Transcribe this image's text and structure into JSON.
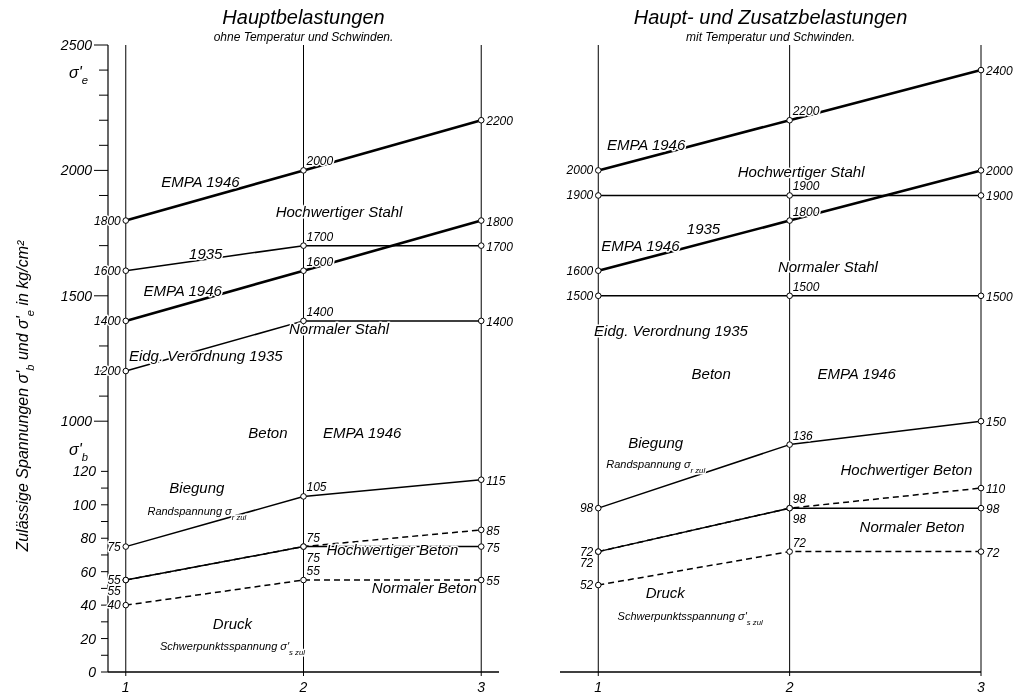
{
  "chart_data": [
    {
      "type": "line",
      "title": "Hauptbelastungen",
      "subtitle": "ohne Temperatur und Schwinden.",
      "y2label": "Zulässige Spannungen σ'$_{b}$ und σ'$_{e}$ in kg/cm²",
      "x": [
        1,
        2,
        3
      ],
      "xlim": [
        0.9,
        3.1
      ],
      "xticks": [
        1,
        2,
        3
      ],
      "ylim": [
        0,
        375
      ],
      "yticks": [
        0,
        {
          "value": 10,
          "label": null
        },
        20,
        {
          "value": 30,
          "label": null
        },
        40,
        {
          "value": 50,
          "label": null
        },
        60,
        {
          "value": 70,
          "label": null
        },
        80,
        {
          "value": 90,
          "label": null
        },
        100,
        {
          "value": 110,
          "label": null
        },
        120
      ],
      "y2lim": [
        0,
        2500
      ],
      "y2ticks": [
        1000,
        {
          "value": 1100,
          "label": null
        },
        {
          "value": 1200,
          "label": null
        },
        {
          "value": 1300,
          "label": null
        },
        {
          "value": 1400,
          "label": null
        },
        1500,
        {
          "value": 1600,
          "label": null
        },
        {
          "value": 1700,
          "label": null
        },
        {
          "value": 1800,
          "label": null
        },
        {
          "value": 1900,
          "label": null
        },
        2000,
        {
          "value": 2100,
          "label": null
        },
        {
          "value": 2200,
          "label": null
        },
        {
          "value": 2300,
          "label": null
        },
        {
          "value": 2400,
          "label": null
        },
        2500
      ],
      "series": [
        {
          "color": "#000000",
          "axis": "y2",
          "line_style": "solid",
          "values": [
            1800,
            2000,
            2200
          ]
        },
        {
          "color": "#000000",
          "axis": "y2",
          "line_style": "solid",
          "values": [
            1600,
            1700,
            1700
          ]
        },
        {
          "color": "#000000",
          "axis": "y2",
          "line_style": "solid",
          "values": [
            1400,
            1600,
            1800
          ]
        },
        {
          "color": "#000000",
          "axis": "y2",
          "line_style": "solid",
          "values": [
            1200,
            1400,
            1400
          ]
        },
        {
          "color": "#000000",
          "line_style": "solid",
          "values": [
            75,
            105,
            115
          ]
        },
        {
          "color": "#000000",
          "line_style": "solid",
          "values": [
            55,
            75,
            75
          ]
        },
        {
          "color": "#000000",
          "line_style": "dashed",
          "values": [
            55,
            75,
            85
          ]
        },
        {
          "color": "#000000",
          "line_style": "dashed",
          "values": [
            40,
            55,
            55
          ]
        }
      ],
      "marker": "circle",
      "data_labels": true,
      "ref_lines": [
        {
          "axis": "x",
          "value": 1
        },
        {
          "axis": "x",
          "value": 2
        },
        {
          "axis": "x",
          "value": 3
        }
      ],
      "annotations": [
        "EMPA 1946",
        "Hochwertiger Stahl",
        "1935",
        "EMPA 1946",
        "Normaler Stahl",
        "Eidg. Verordnung 1935",
        "Beton",
        "EMPA 1946",
        "Biegung",
        "Randspannung σ$_{r zul}$",
        "Hochwertiger Beton",
        "Normaler Beton",
        "Druck",
        "Schwerpunktsspannung σ'$_{s zul}$",
        "σ'$_{b}$",
        "σ'$_{e}$"
      ]
    },
    {
      "type": "line",
      "title": "Haupt- und Zusatzbelastungen",
      "subtitle": "mit Temperatur und Schwinden.",
      "x": [
        1,
        2,
        3
      ],
      "xlim": [
        0.8,
        3
      ],
      "xticks": [
        1,
        2,
        3
      ],
      "ylim": [
        0,
        375
      ],
      "y2lim": [
        0,
        2500
      ],
      "tick_labels": "x",
      "series": [
        {
          "color": "#000000",
          "axis": "y2",
          "line_style": "solid",
          "values": [
            2000,
            2200,
            2400
          ]
        },
        {
          "color": "#000000",
          "axis": "y2",
          "line_style": "solid",
          "values": [
            1900,
            1900,
            1900
          ]
        },
        {
          "color": "#000000",
          "axis": "y2",
          "line_style": "solid",
          "values": [
            1600,
            1800,
            2000
          ]
        },
        {
          "color": "#000000",
          "axis": "y2",
          "line_style": "solid",
          "values": [
            1500,
            1500,
            1500
          ]
        },
        {
          "color": "#000000",
          "line_style": "solid",
          "values": [
            98,
            136,
            150
          ]
        },
        {
          "color": "#000000",
          "line_style": "solid",
          "values": [
            72,
            98,
            98
          ]
        },
        {
          "color": "#000000",
          "line_style": "dashed",
          "values": [
            72,
            98,
            110
          ]
        },
        {
          "color": "#000000",
          "line_style": "dashed",
          "values": [
            52,
            72,
            72
          ]
        }
      ],
      "marker": "circle",
      "data_labels": true,
      "ref_lines": [
        {
          "axis": "x",
          "value": 1
        },
        {
          "axis": "x",
          "value": 2
        },
        {
          "axis": "x",
          "value": 3
        }
      ],
      "annotations": [
        "EMPA 1946",
        "Hochwertiger Stahl",
        "1935",
        "EMPA 1946",
        "Normaler Stahl",
        "Eidg. Verordnung 1935",
        "Beton",
        "EMPA 1946",
        "Biegung",
        "Randspannung σ$_{r zul}$",
        "Hochwertiger Beton",
        "Normaler Beton",
        "Druck",
        "Schwerpunktsspannung σ'$_{s zul}$"
      ]
    }
  ]
}
